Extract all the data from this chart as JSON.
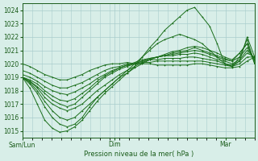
{
  "title": "",
  "xlabel": "Pression niveau de la mer( hPa )",
  "ylabel": "",
  "ylim": [
    1014.5,
    1024.5
  ],
  "xlim": [
    0,
    96
  ],
  "yticks": [
    1015,
    1016,
    1017,
    1018,
    1019,
    1020,
    1021,
    1022,
    1023,
    1024
  ],
  "xtick_positions": [
    0,
    24,
    60,
    84
  ],
  "xtick_labels": [
    "Sam/Lun",
    "Dim",
    "",
    "Mar"
  ],
  "bg_color": "#d8eee8",
  "grid_color": "#a8cccc",
  "line_color": "#1a6e1a",
  "series": [
    [
      1019.0,
      1018.2,
      1017.0,
      1015.8,
      1015.2,
      1014.9,
      1015.0,
      1015.3,
      1015.8,
      1016.5,
      1017.2,
      1017.8,
      1018.3,
      1018.8,
      1019.3,
      1019.8,
      1020.5,
      1021.2,
      1021.8,
      1022.5,
      1023.0,
      1023.5,
      1024.0,
      1024.2,
      1023.5,
      1022.8,
      1021.5,
      1020.0,
      1019.8,
      1020.2,
      1022.0,
      1020.5
    ],
    [
      1019.0,
      1018.5,
      1017.8,
      1016.8,
      1016.0,
      1015.5,
      1015.3,
      1015.5,
      1016.0,
      1016.8,
      1017.5,
      1018.0,
      1018.5,
      1019.0,
      1019.5,
      1020.0,
      1020.5,
      1021.0,
      1021.5,
      1021.8,
      1022.0,
      1022.2,
      1022.0,
      1021.8,
      1021.5,
      1021.0,
      1020.5,
      1020.0,
      1019.8,
      1020.5,
      1021.8,
      1020.0
    ],
    [
      1019.0,
      1018.6,
      1018.0,
      1017.2,
      1016.5,
      1016.0,
      1015.8,
      1016.0,
      1016.5,
      1017.0,
      1017.5,
      1018.0,
      1018.5,
      1019.0,
      1019.3,
      1019.7,
      1020.0,
      1020.3,
      1020.5,
      1020.7,
      1020.9,
      1021.0,
      1021.2,
      1021.3,
      1021.2,
      1021.0,
      1020.8,
      1020.5,
      1020.3,
      1020.8,
      1021.5,
      1020.0
    ],
    [
      1019.0,
      1018.7,
      1018.2,
      1017.5,
      1017.0,
      1016.7,
      1016.5,
      1016.7,
      1017.0,
      1017.5,
      1018.0,
      1018.4,
      1018.8,
      1019.2,
      1019.5,
      1019.8,
      1020.1,
      1020.3,
      1020.5,
      1020.6,
      1020.8,
      1020.9,
      1021.0,
      1021.2,
      1021.0,
      1020.8,
      1020.6,
      1020.4,
      1020.2,
      1020.8,
      1021.5,
      1020.2
    ],
    [
      1019.0,
      1018.7,
      1018.3,
      1017.8,
      1017.3,
      1017.0,
      1016.8,
      1017.0,
      1017.5,
      1018.0,
      1018.5,
      1019.0,
      1019.3,
      1019.6,
      1019.8,
      1020.0,
      1020.2,
      1020.4,
      1020.5,
      1020.6,
      1020.7,
      1020.8,
      1020.9,
      1021.0,
      1020.9,
      1020.7,
      1020.5,
      1020.3,
      1020.2,
      1020.5,
      1021.2,
      1020.3
    ],
    [
      1019.0,
      1018.8,
      1018.5,
      1018.0,
      1017.6,
      1017.3,
      1017.2,
      1017.4,
      1017.8,
      1018.2,
      1018.7,
      1019.1,
      1019.4,
      1019.7,
      1019.9,
      1020.1,
      1020.3,
      1020.4,
      1020.5,
      1020.6,
      1020.6,
      1020.7,
      1020.7,
      1020.8,
      1020.7,
      1020.5,
      1020.3,
      1020.2,
      1020.0,
      1020.3,
      1021.0,
      1020.4
    ],
    [
      1019.2,
      1019.0,
      1018.7,
      1018.3,
      1018.0,
      1017.8,
      1017.7,
      1017.9,
      1018.2,
      1018.5,
      1018.9,
      1019.2,
      1019.5,
      1019.7,
      1019.9,
      1020.0,
      1020.2,
      1020.3,
      1020.3,
      1020.4,
      1020.4,
      1020.4,
      1020.5,
      1020.5,
      1020.4,
      1020.3,
      1020.2,
      1020.0,
      1019.9,
      1020.2,
      1020.8,
      1020.5
    ],
    [
      1019.5,
      1019.3,
      1019.0,
      1018.7,
      1018.4,
      1018.2,
      1018.2,
      1018.4,
      1018.6,
      1018.9,
      1019.2,
      1019.5,
      1019.7,
      1019.8,
      1020.0,
      1020.0,
      1020.1,
      1020.1,
      1020.2,
      1020.2,
      1020.2,
      1020.2,
      1020.2,
      1020.2,
      1020.2,
      1020.1,
      1020.0,
      1019.9,
      1019.8,
      1020.0,
      1020.5,
      1020.5
    ],
    [
      1020.0,
      1019.8,
      1019.5,
      1019.2,
      1019.0,
      1018.8,
      1018.8,
      1019.0,
      1019.2,
      1019.5,
      1019.7,
      1019.9,
      1020.0,
      1020.0,
      1020.1,
      1020.0,
      1020.0,
      1020.0,
      1019.9,
      1019.9,
      1019.9,
      1019.9,
      1019.9,
      1020.0,
      1020.0,
      1019.9,
      1019.8,
      1019.7,
      1019.7,
      1019.8,
      1020.2,
      1020.5
    ]
  ]
}
